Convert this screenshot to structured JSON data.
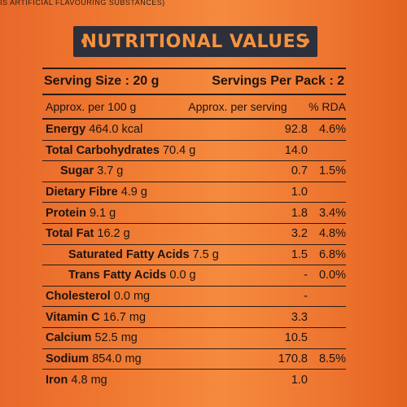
{
  "top_strip_text": "IS ARTIFICIAL FLAVOURING SUBSTANCES)",
  "title": "NUTRITIONAL VALUES",
  "serving_size": "Serving Size : 20 g",
  "servings_per_pack": "Servings Per Pack : 2",
  "columns": {
    "per100": "Approx. per 100 g",
    "perserving": "Approx. per serving",
    "rda": "% RDA"
  },
  "rows": [
    {
      "name": "Energy",
      "amount": "464.0 kcal",
      "serving": "92.8",
      "rda": "4.6%"
    },
    {
      "name": "Total Carbohydrates",
      "amount": "70.4 g",
      "serving": "14.0",
      "rda": ""
    },
    {
      "name": "Sugar",
      "amount": "3.7 g",
      "serving": "0.7",
      "rda": "1.5%"
    },
    {
      "name": "Dietary Fibre",
      "amount": "4.9 g",
      "serving": "1.0",
      "rda": ""
    },
    {
      "name": "Protein",
      "amount": "9.1 g",
      "serving": "1.8",
      "rda": "3.4%"
    },
    {
      "name": "Total Fat",
      "amount": "16.2 g",
      "serving": "3.2",
      "rda": "4.8%"
    },
    {
      "name": "Saturated Fatty Acids",
      "amount": "7.5 g",
      "serving": "1.5",
      "rda": "6.8%"
    },
    {
      "name": "Trans Fatty Acids",
      "amount": "0.0 g",
      "serving": "-",
      "rda": "0.0%"
    },
    {
      "name": "Cholesterol",
      "amount": "0.0 mg",
      "serving": "-",
      "rda": ""
    },
    {
      "name": "Vitamin C",
      "amount": "16.7 mg",
      "serving": "3.3",
      "rda": ""
    },
    {
      "name": "Calcium",
      "amount": "52.5 mg",
      "serving": "10.5",
      "rda": ""
    },
    {
      "name": "Sodium",
      "amount": "854.0 mg",
      "serving": "170.8",
      "rda": "8.5%"
    },
    {
      "name": "Iron",
      "amount": "4.8 mg",
      "serving": "1.0",
      "rda": ""
    }
  ]
}
